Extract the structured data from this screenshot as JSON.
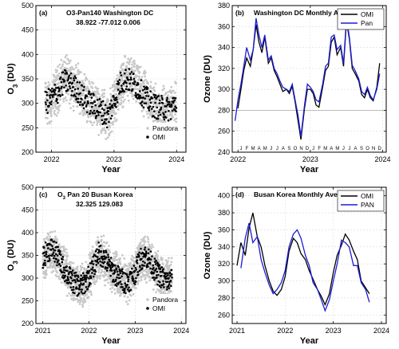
{
  "colors": {
    "pandora": "#c8c8c8",
    "omi": "#000000",
    "pan_line": "#1c1cd6",
    "grid": "#dcdcdc"
  },
  "chart_data": [
    {
      "id": "a",
      "type": "scatter",
      "title": "O3-Pan140 Washington DC",
      "panel_label": "(a)",
      "info_text": "38.922   -77.012      0.006",
      "xlabel": "Year",
      "ylabel": "O3 (DU)",
      "ylabel_main": "O",
      "ylabel_sub": "3",
      "ylabel_rest": " (DU)",
      "xlim": [
        2021.75,
        2024.15
      ],
      "ylim": [
        200,
        500
      ],
      "xticks": [
        2022,
        2023,
        2024
      ],
      "xticklabels": [
        "2022",
        "2023",
        "2024"
      ],
      "yticks": [
        200,
        250,
        300,
        350,
        400,
        450,
        500
      ],
      "yticklabels": [
        "200",
        "250",
        "300",
        "350",
        "400",
        "450",
        "500"
      ],
      "grid": true,
      "legend_position": "bottom-right",
      "series": [
        {
          "name": "Pandora",
          "style": "grey-dots",
          "x": [
            2021.9,
            2022.0,
            2022.1,
            2022.2,
            2022.3,
            2022.4,
            2022.5,
            2022.6,
            2022.7,
            2022.8,
            2022.9,
            2023.0,
            2023.1,
            2023.2,
            2023.3,
            2023.4,
            2023.5,
            2023.6,
            2023.7,
            2023.8,
            2023.9,
            2024.0
          ],
          "values": [
            300,
            305,
            330,
            350,
            345,
            335,
            315,
            305,
            295,
            285,
            270,
            300,
            335,
            355,
            345,
            330,
            315,
            300,
            292,
            288,
            285,
            300
          ]
        },
        {
          "name": "OMI",
          "style": "black-dots",
          "x": [
            2021.9,
            2022.0,
            2022.1,
            2022.2,
            2022.3,
            2022.4,
            2022.5,
            2022.6,
            2022.7,
            2022.8,
            2022.9,
            2023.0,
            2023.1,
            2023.2,
            2023.3,
            2023.4,
            2023.5,
            2023.6,
            2023.7,
            2023.8,
            2023.9,
            2024.0
          ],
          "values": [
            300,
            310,
            325,
            345,
            340,
            330,
            312,
            302,
            293,
            285,
            272,
            305,
            340,
            350,
            342,
            328,
            312,
            298,
            292,
            290,
            288,
            305
          ]
        }
      ]
    },
    {
      "id": "b",
      "type": "line",
      "title": "Washington DC Monthly Average",
      "panel_label": "(b)",
      "xlabel": "Year",
      "ylabel": "Ozone (DU)",
      "xlim": [
        2021.92,
        2024.05
      ],
      "ylim": [
        240,
        380
      ],
      "xticks": [
        2022,
        2023,
        2024
      ],
      "xticklabels": [
        "2022",
        "2023",
        "2024"
      ],
      "yticks": [
        240,
        260,
        280,
        300,
        320,
        340,
        360,
        380
      ],
      "yticklabels": [
        "240",
        "260",
        "280",
        "300",
        "320",
        "340",
        "360",
        "380"
      ],
      "hlines": [
        280
      ],
      "month_letters": [
        "J",
        "F",
        "M",
        "A",
        "M",
        "J",
        "J",
        "A",
        "S",
        "O",
        "N",
        "D",
        "J",
        "F",
        "M",
        "A",
        "M",
        "J",
        "J",
        "A",
        "S",
        "O",
        "N",
        "D"
      ],
      "grid": true,
      "legend_position": "top-right",
      "series": [
        {
          "name": "OMI",
          "color": "#000000",
          "x": [
            2022.0,
            2022.04,
            2022.08,
            2022.12,
            2022.17,
            2022.21,
            2022.25,
            2022.29,
            2022.33,
            2022.37,
            2022.42,
            2022.46,
            2022.5,
            2022.54,
            2022.58,
            2022.62,
            2022.67,
            2022.71,
            2022.75,
            2022.79,
            2022.83,
            2022.87,
            2022.92,
            2022.96,
            2023.0,
            2023.04,
            2023.08,
            2023.12,
            2023.17,
            2023.21,
            2023.25,
            2023.29,
            2023.33,
            2023.37,
            2023.42,
            2023.46,
            2023.5,
            2023.54,
            2023.58,
            2023.62,
            2023.67,
            2023.71,
            2023.75,
            2023.79,
            2023.83,
            2023.87,
            2023.92,
            2023.96
          ],
          "values": [
            282,
            300,
            318,
            330,
            322,
            338,
            362,
            345,
            335,
            350,
            325,
            330,
            318,
            312,
            305,
            298,
            300,
            296,
            303,
            288,
            270,
            252,
            282,
            300,
            300,
            296,
            285,
            283,
            302,
            318,
            322,
            345,
            350,
            333,
            340,
            322,
            365,
            348,
            320,
            315,
            308,
            295,
            292,
            300,
            292,
            289,
            302,
            325
          ]
        },
        {
          "name": "Pan",
          "color": "#1c1cd6",
          "x": [
            2021.96,
            2022.0,
            2022.04,
            2022.08,
            2022.12,
            2022.17,
            2022.21,
            2022.25,
            2022.29,
            2022.33,
            2022.37,
            2022.42,
            2022.46,
            2022.5,
            2022.54,
            2022.58,
            2022.62,
            2022.67,
            2022.71,
            2022.75,
            2022.79,
            2022.83,
            2022.87,
            2022.92,
            2022.96,
            2023.0,
            2023.04,
            2023.08,
            2023.12,
            2023.17,
            2023.21,
            2023.25,
            2023.29,
            2023.33,
            2023.37,
            2023.42,
            2023.46,
            2023.5,
            2023.54,
            2023.58,
            2023.62,
            2023.67,
            2023.71,
            2023.75,
            2023.79,
            2023.83,
            2023.87,
            2023.92,
            2023.96
          ],
          "values": [
            270,
            290,
            305,
            322,
            340,
            328,
            338,
            368,
            352,
            340,
            352,
            328,
            332,
            320,
            315,
            308,
            302,
            300,
            298,
            305,
            290,
            275,
            255,
            285,
            305,
            302,
            298,
            290,
            288,
            305,
            322,
            325,
            350,
            352,
            338,
            342,
            325,
            368,
            350,
            323,
            318,
            310,
            298,
            295,
            302,
            294,
            290,
            300,
            315
          ]
        }
      ]
    },
    {
      "id": "c",
      "type": "scatter",
      "title": "O3 Pan 20 Busan Korea",
      "title_main": "O",
      "title_sub": "3",
      "title_rest": " Pan 20 Busan Korea",
      "panel_label": "(c)",
      "info_text": "32.325   129.083",
      "xlabel": "Year",
      "ylabel": "O3 (DU)",
      "ylabel_main": "O",
      "ylabel_sub": "3",
      "ylabel_rest": " (DU)",
      "xlim": [
        2020.85,
        2024.1
      ],
      "ylim": [
        200,
        500
      ],
      "xticks": [
        2021,
        2022,
        2023,
        2024
      ],
      "xticklabels": [
        "2021",
        "2022",
        "2023",
        "2024"
      ],
      "yticks": [
        200,
        250,
        300,
        350,
        400,
        450,
        500
      ],
      "yticklabels": [
        "200",
        "250",
        "300",
        "350",
        "400",
        "450",
        "500"
      ],
      "grid": true,
      "legend_position": "bottom-right",
      "series": [
        {
          "name": "Pandora",
          "style": "grey-dots",
          "x": [
            2021.0,
            2021.1,
            2021.2,
            2021.3,
            2021.4,
            2021.5,
            2021.6,
            2021.7,
            2021.8,
            2021.9,
            2022.0,
            2022.1,
            2022.2,
            2022.3,
            2022.4,
            2022.5,
            2022.6,
            2022.7,
            2022.8,
            2022.9,
            2023.0,
            2023.1,
            2023.2,
            2023.3,
            2023.4,
            2023.5,
            2023.6,
            2023.7,
            2023.8
          ],
          "values": [
            340,
            355,
            360,
            350,
            335,
            315,
            300,
            290,
            280,
            285,
            300,
            320,
            350,
            345,
            330,
            320,
            310,
            300,
            292,
            300,
            310,
            335,
            345,
            340,
            320,
            305,
            300,
            295,
            300
          ]
        },
        {
          "name": "OMI",
          "style": "black-dots",
          "x": [
            2021.0,
            2021.1,
            2021.2,
            2021.3,
            2021.4,
            2021.5,
            2021.6,
            2021.7,
            2021.8,
            2021.9,
            2022.0,
            2022.1,
            2022.2,
            2022.3,
            2022.4,
            2022.5,
            2022.6,
            2022.7,
            2022.8,
            2022.9,
            2023.0,
            2023.1,
            2023.2,
            2023.3,
            2023.4,
            2023.5,
            2023.6,
            2023.7,
            2023.8
          ],
          "values": [
            345,
            360,
            365,
            352,
            330,
            312,
            298,
            288,
            282,
            288,
            305,
            325,
            355,
            348,
            332,
            318,
            305,
            298,
            290,
            298,
            312,
            340,
            350,
            342,
            322,
            308,
            300,
            292,
            298
          ]
        }
      ]
    },
    {
      "id": "d",
      "type": "line",
      "title": "Busan Korea Monthly Average",
      "panel_label": "(d)",
      "xlabel": "Year",
      "ylabel": "Ozone (DU)",
      "xlim": [
        2020.9,
        2024.1
      ],
      "ylim": [
        250,
        410
      ],
      "xticks": [
        2021,
        2022,
        2023,
        2024
      ],
      "xticklabels": [
        "2021",
        "2022",
        "2023",
        "2024"
      ],
      "yticks": [
        260,
        280,
        300,
        320,
        340,
        360,
        380,
        400
      ],
      "yticklabels": [
        "260",
        "280",
        "300",
        "320",
        "340",
        "360",
        "380",
        "400"
      ],
      "grid": true,
      "legend_position": "top-right",
      "series": [
        {
          "name": "OMI",
          "color": "#000000",
          "x": [
            2021.0,
            2021.08,
            2021.17,
            2021.25,
            2021.33,
            2021.42,
            2021.5,
            2021.58,
            2021.67,
            2021.75,
            2021.83,
            2021.92,
            2022.0,
            2022.08,
            2022.17,
            2022.25,
            2022.33,
            2022.42,
            2022.5,
            2022.58,
            2022.67,
            2022.75,
            2022.83,
            2022.92,
            2023.0,
            2023.08,
            2023.17,
            2023.25,
            2023.33,
            2023.42,
            2023.5,
            2023.58,
            2023.67,
            2023.75
          ],
          "values": [
            318,
            345,
            330,
            362,
            380,
            352,
            340,
            318,
            300,
            288,
            283,
            290,
            305,
            335,
            350,
            345,
            332,
            325,
            312,
            302,
            290,
            282,
            272,
            285,
            310,
            330,
            342,
            355,
            348,
            335,
            325,
            300,
            292,
            285
          ]
        },
        {
          "name": "PAN",
          "color": "#1c1cd6",
          "x": [
            2021.08,
            2021.17,
            2021.25,
            2021.33,
            2021.42,
            2021.5,
            2021.58,
            2021.67,
            2021.75,
            2021.83,
            2021.92,
            2022.0,
            2022.08,
            2022.17,
            2022.25,
            2022.33,
            2022.42,
            2022.5,
            2022.58,
            2022.67,
            2022.75,
            2022.83,
            2022.92,
            2023.0,
            2023.08,
            2023.17,
            2023.25,
            2023.33,
            2023.42,
            2023.5,
            2023.58,
            2023.67,
            2023.75
          ],
          "values": [
            315,
            350,
            368,
            345,
            352,
            325,
            310,
            295,
            285,
            290,
            298,
            312,
            340,
            355,
            360,
            350,
            330,
            318,
            298,
            290,
            278,
            265,
            278,
            300,
            320,
            348,
            345,
            340,
            318,
            318,
            298,
            290,
            275
          ]
        }
      ]
    }
  ]
}
